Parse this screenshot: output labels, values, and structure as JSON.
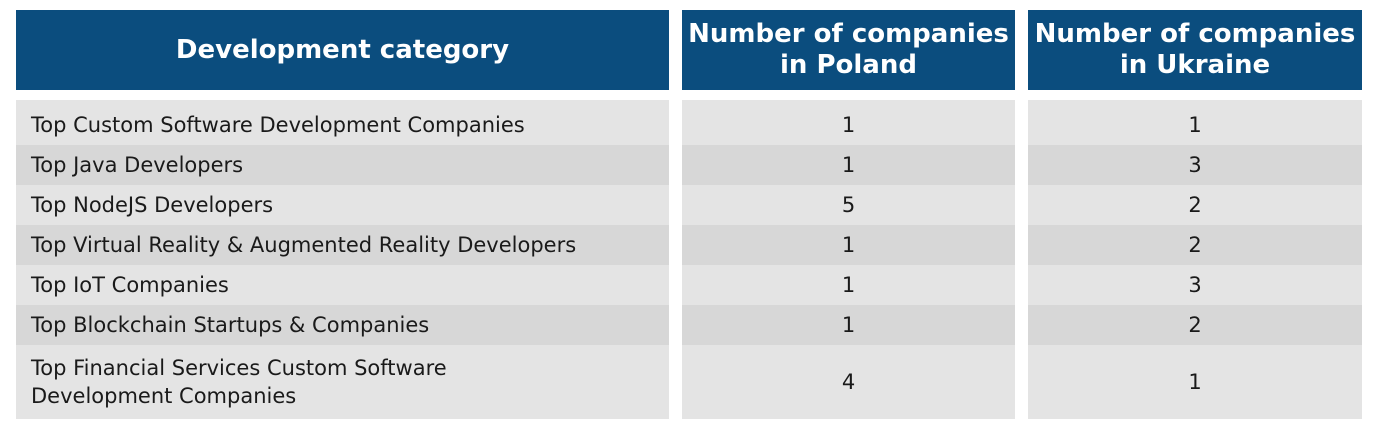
{
  "chart_data": {
    "type": "table",
    "columns": [
      "Development category",
      "Number of companies\nin Poland",
      "Number of companies\nin Ukraine"
    ],
    "rows": [
      {
        "category": "Top Custom Software Development Companies",
        "poland": "1",
        "ukraine": "1"
      },
      {
        "category": "Top Java Developers",
        "poland": "1",
        "ukraine": "3"
      },
      {
        "category": "Top NodeJS Developers",
        "poland": "5",
        "ukraine": "2"
      },
      {
        "category": "Top Virtual Reality & Augmented Reality Developers",
        "poland": "1",
        "ukraine": "2"
      },
      {
        "category": "Top IoT Companies",
        "poland": "1",
        "ukraine": "3"
      },
      {
        "category": "Top Blockchain Startups & Companies",
        "poland": "1",
        "ukraine": "2"
      },
      {
        "category": "Top Financial Services Custom Software\nDevelopment Companies",
        "poland": "4",
        "ukraine": "1"
      }
    ]
  },
  "colors": {
    "header_bg": "#0b4d7e",
    "header_text": "#ffffff",
    "row_bg": "#e4e4e4",
    "row_alt_bg": "#d7d7d7"
  }
}
